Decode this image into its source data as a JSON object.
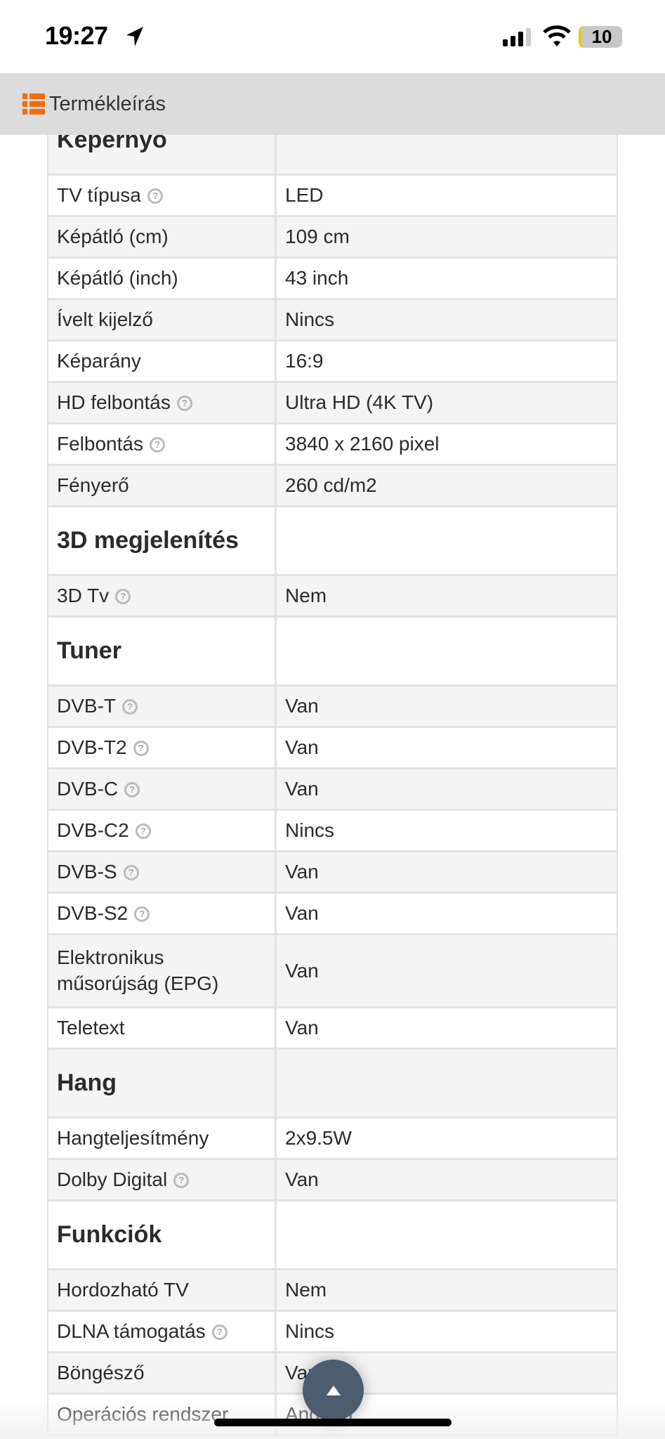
{
  "status_bar": {
    "time": "19:27",
    "battery": "10"
  },
  "header": {
    "title": "Termékleírás",
    "icon": "list-icon",
    "accent": "#f26b0f"
  },
  "rows": [
    {
      "type": "section",
      "label": "Képernyő"
    },
    {
      "label": "TV típusa",
      "value": "LED",
      "help": true
    },
    {
      "label": "Képátló (cm)",
      "value": "109 cm"
    },
    {
      "label": "Képátló (inch)",
      "value": "43 inch"
    },
    {
      "label": "Ívelt kijelző",
      "value": "Nincs"
    },
    {
      "label": "Képarány",
      "value": "16:9"
    },
    {
      "label": "HD felbontás",
      "value": "Ultra HD (4K TV)",
      "help": true
    },
    {
      "label": "Felbontás",
      "value": "3840 x 2160 pixel",
      "help": true
    },
    {
      "label": "Fényerő",
      "value": "260 cd/m2"
    },
    {
      "type": "section",
      "label": "3D megjelenítés"
    },
    {
      "label": "3D Tv",
      "value": "Nem",
      "help": true
    },
    {
      "type": "section",
      "label": "Tuner"
    },
    {
      "label": "DVB-T",
      "value": "Van",
      "help": true
    },
    {
      "label": "DVB-T2",
      "value": "Van",
      "help": true
    },
    {
      "label": "DVB-C",
      "value": "Van",
      "help": true
    },
    {
      "label": "DVB-C2",
      "value": "Nincs",
      "help": true
    },
    {
      "label": "DVB-S",
      "value": "Van",
      "help": true
    },
    {
      "label": "DVB-S2",
      "value": "Van",
      "help": true
    },
    {
      "label": "Elektronikus műsorújság (EPG)",
      "value": "Van",
      "tall": true
    },
    {
      "label": "Teletext",
      "value": "Van"
    },
    {
      "type": "section",
      "label": "Hang"
    },
    {
      "label": "Hangteljesítmény",
      "value": "2x9.5W"
    },
    {
      "label": "Dolby Digital",
      "value": "Van",
      "help": true
    },
    {
      "type": "section",
      "label": "Funkciók"
    },
    {
      "label": "Hordozható TV",
      "value": "Nem"
    },
    {
      "label": "DLNA támogatás",
      "value": "Nincs",
      "help": true
    },
    {
      "label": "Böngésző",
      "value": "Van"
    },
    {
      "label": "Operációs rendszer",
      "value": "Android"
    }
  ]
}
